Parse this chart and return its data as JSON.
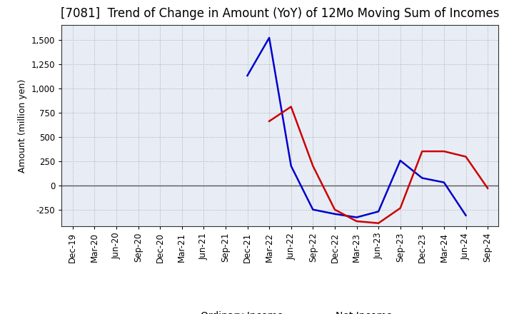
{
  "title": "[7081]  Trend of Change in Amount (YoY) of 12Mo Moving Sum of Incomes",
  "ylabel": "Amount (million yen)",
  "x_labels": [
    "Dec-19",
    "Mar-20",
    "Jun-20",
    "Sep-20",
    "Dec-20",
    "Mar-21",
    "Jun-21",
    "Sep-21",
    "Dec-21",
    "Mar-22",
    "Jun-22",
    "Sep-22",
    "Dec-22",
    "Mar-23",
    "Jun-23",
    "Sep-23",
    "Dec-23",
    "Mar-24",
    "Jun-24",
    "Sep-24"
  ],
  "ordinary_income": [
    null,
    null,
    null,
    null,
    null,
    null,
    null,
    null,
    1130,
    1520,
    200,
    -250,
    -295,
    -330,
    -270,
    255,
    75,
    30,
    -310,
    null
  ],
  "net_income": [
    null,
    null,
    null,
    null,
    null,
    null,
    null,
    null,
    null,
    660,
    810,
    200,
    -250,
    -370,
    -390,
    -235,
    350,
    350,
    295,
    -30
  ],
  "ylim": [
    -420,
    1650
  ],
  "yticks": [
    -250,
    0,
    250,
    500,
    750,
    1000,
    1250,
    1500
  ],
  "ordinary_color": "#0000cc",
  "net_color": "#cc0000",
  "background_color": "#ffffff",
  "plot_bg_color": "#e8edf5",
  "grid_color": "#aaaaaa",
  "zero_line_color": "#555555",
  "title_fontsize": 12,
  "axis_label_fontsize": 9,
  "tick_fontsize": 8.5,
  "legend_fontsize": 10
}
